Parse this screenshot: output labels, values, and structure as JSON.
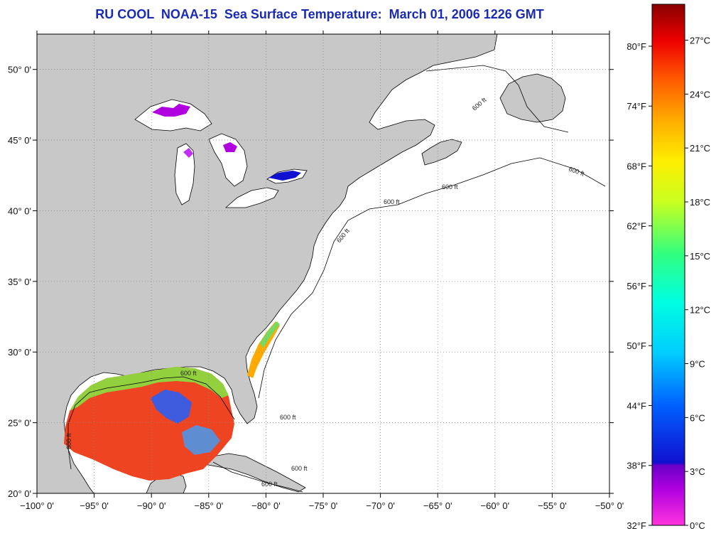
{
  "title": "RU COOL  NOAA-15  Sea Surface Temperature:  March 01, 2006 1226 GMT",
  "map": {
    "lon_range": [
      -100,
      -50
    ],
    "lat_range": [
      20,
      52.5
    ],
    "lon_ticks": [
      {
        "value": -100,
        "label": "−100° 0'"
      },
      {
        "value": -95,
        "label": "−95° 0'"
      },
      {
        "value": -90,
        "label": "−90° 0'"
      },
      {
        "value": -85,
        "label": "−85° 0'"
      },
      {
        "value": -80,
        "label": "−80° 0'"
      },
      {
        "value": -75,
        "label": "−75° 0'"
      },
      {
        "value": -70,
        "label": "−70° 0'"
      },
      {
        "value": -65,
        "label": "−65° 0'"
      },
      {
        "value": -60,
        "label": "−60° 0'"
      },
      {
        "value": -55,
        "label": "−55° 0'"
      },
      {
        "value": -50,
        "label": "−50° 0'"
      }
    ],
    "lat_ticks": [
      {
        "value": 20,
        "label": "20° 0'"
      },
      {
        "value": 25,
        "label": "25° 0'"
      },
      {
        "value": 30,
        "label": "30° 0'"
      },
      {
        "value": 35,
        "label": "35° 0'"
      },
      {
        "value": 40,
        "label": "40° 0'"
      },
      {
        "value": 45,
        "label": "45° 0'"
      },
      {
        "value": 50,
        "label": "50° 0'"
      }
    ],
    "contour_label": "600 ft",
    "colors": {
      "land": "#c8c8c8",
      "ocean": "#ffffff",
      "grid": "#8a8a8a",
      "coast": "#000000"
    }
  },
  "colorbar": {
    "range_c": [
      0,
      29
    ],
    "f_labels": [
      "32°F",
      "38°F",
      "44°F",
      "50°F",
      "56°F",
      "62°F",
      "68°F",
      "74°F",
      "80°F"
    ],
    "c_labels": [
      "0°C",
      "3°C",
      "6°C",
      "9°C",
      "12°C",
      "15°C",
      "18°C",
      "21°C",
      "24°C",
      "27°C"
    ]
  }
}
